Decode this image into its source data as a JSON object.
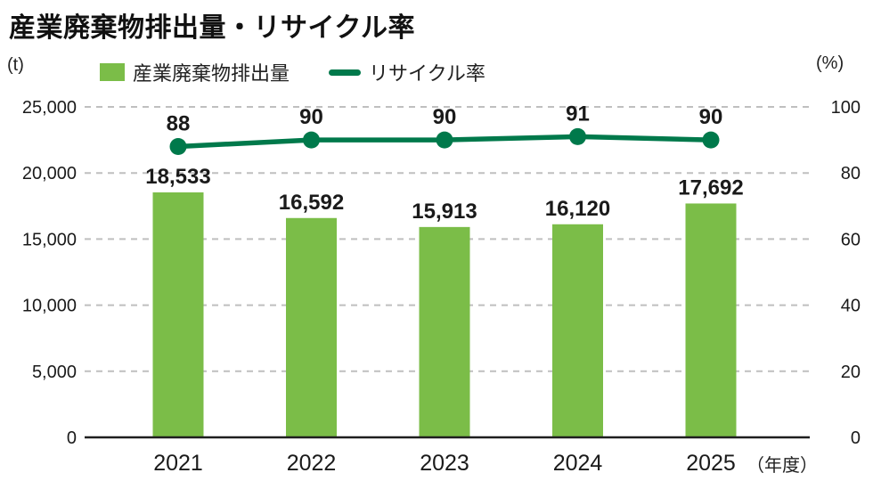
{
  "title": "産業廃棄物排出量・リサイクル率",
  "legend": {
    "bars": "産業廃棄物排出量",
    "line": "リサイクル率"
  },
  "left_axis": {
    "unit": "(t)",
    "tick_labels": [
      "0",
      "5,000",
      "10,000",
      "15,000",
      "20,000",
      "25,000"
    ],
    "tick_values": [
      0,
      5000,
      10000,
      15000,
      20000,
      25000
    ]
  },
  "right_axis": {
    "unit": "(%)",
    "tick_labels": [
      "0",
      "20",
      "40",
      "60",
      "80",
      "100"
    ],
    "tick_values": [
      0,
      20,
      40,
      60,
      80,
      100
    ]
  },
  "x_axis": {
    "unit": "（年度）"
  },
  "colors": {
    "bar": "#7bbd48",
    "line": "#00794b",
    "grid": "#bfbfbf",
    "axis": "#1f1f1f",
    "text": "#1a1a1a"
  },
  "chart_data": {
    "type": "bar+line",
    "categories": [
      "2021",
      "2022",
      "2023",
      "2024",
      "2025"
    ],
    "series": [
      {
        "name": "産業廃棄物排出量",
        "type": "bar",
        "axis": "left",
        "values": [
          18533,
          16592,
          15913,
          16120,
          17692
        ],
        "labels": [
          "18,533",
          "16,592",
          "15,913",
          "16,120",
          "17,692"
        ]
      },
      {
        "name": "リサイクル率",
        "type": "line",
        "axis": "right",
        "values": [
          88,
          90,
          90,
          91,
          90
        ],
        "labels": [
          "88",
          "90",
          "90",
          "91",
          "90"
        ]
      }
    ],
    "left_ylim": [
      0,
      25000
    ],
    "right_ylim": [
      0,
      100
    ],
    "grid": "dashed-horizontal",
    "legend_position": "top"
  }
}
